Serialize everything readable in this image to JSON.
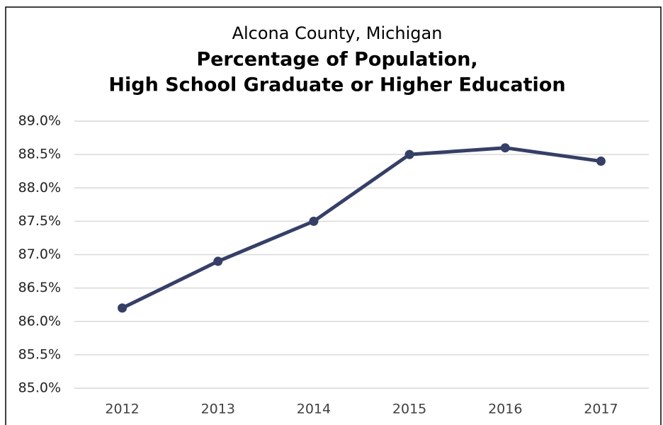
{
  "chart_data": {
    "type": "line",
    "title": "Alcona County, Michigan",
    "subtitle": [
      "Percentage of Population,",
      "High School Graduate or Higher Education"
    ],
    "categories": [
      "2012",
      "2013",
      "2014",
      "2015",
      "2016",
      "2017"
    ],
    "series": [
      {
        "name": "High School Graduate or Higher",
        "color": "#363f66",
        "values": [
          86.2,
          86.9,
          87.5,
          88.5,
          88.6,
          88.4
        ]
      }
    ],
    "ylim": [
      85,
      89
    ],
    "yticks": [
      {
        "value": 85,
        "label": "85.0%"
      },
      {
        "value": 85.5,
        "label": "85.5%"
      },
      {
        "value": 86,
        "label": "86.0%"
      },
      {
        "value": 86.5,
        "label": "86.5%"
      },
      {
        "value": 87,
        "label": "87.0%"
      },
      {
        "value": 87.5,
        "label": "87.5%"
      },
      {
        "value": 88,
        "label": "88.0%"
      },
      {
        "value": 88.5,
        "label": "88.5%"
      },
      {
        "value": 89,
        "label": "89.0%"
      }
    ],
    "grid": true
  }
}
